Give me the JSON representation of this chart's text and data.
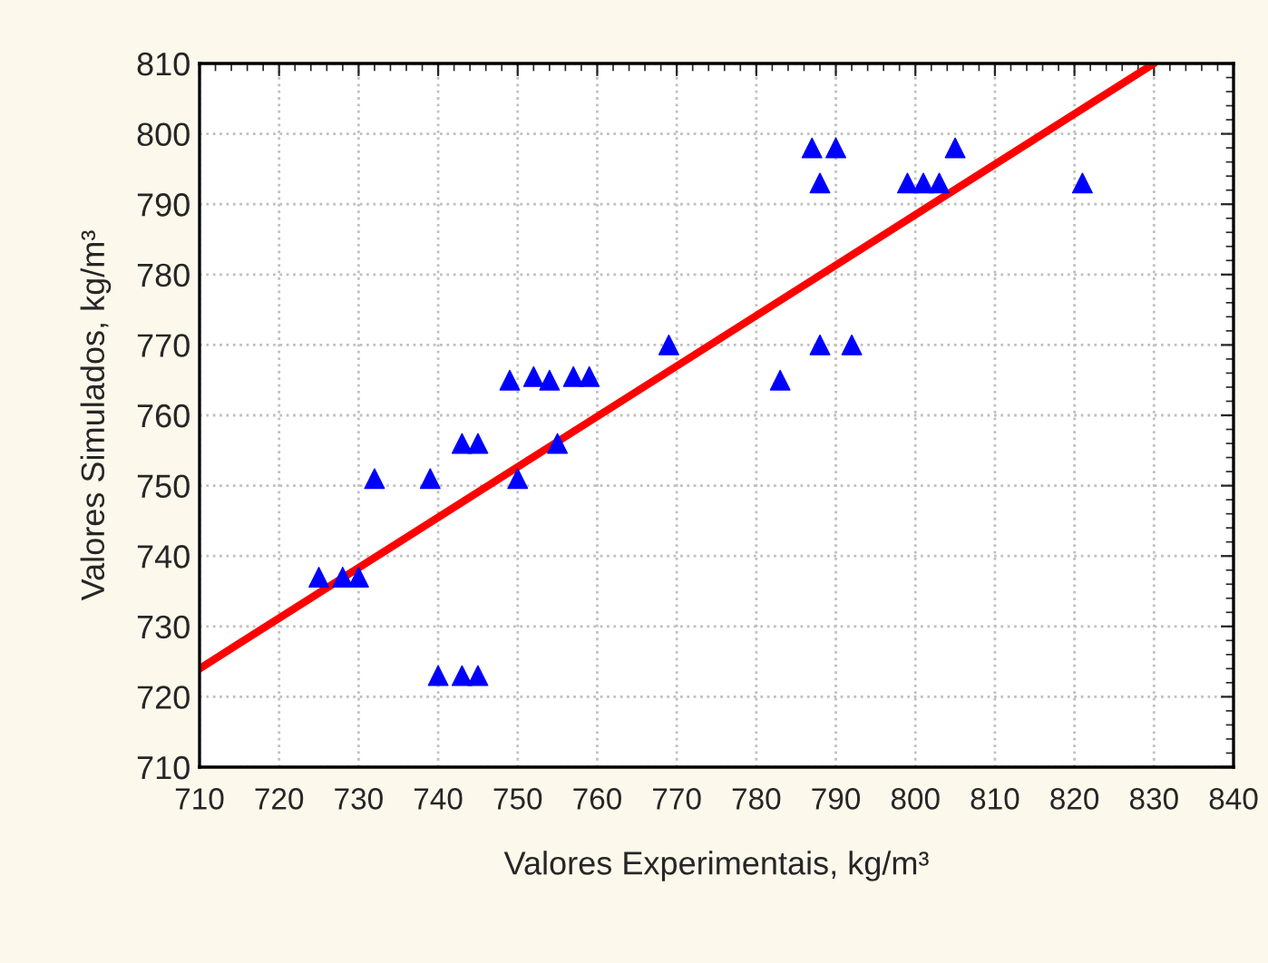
{
  "chart_data": {
    "type": "scatter",
    "xlabel": "Valores Experimentais, kg/m³",
    "ylabel": "Valores Simulados, kg/m³",
    "xlim": [
      710,
      840
    ],
    "xticks": [
      710,
      720,
      730,
      740,
      750,
      760,
      770,
      780,
      790,
      800,
      810,
      820,
      830,
      840
    ],
    "ylim": [
      710,
      810
    ],
    "yticks": [
      710,
      720,
      730,
      740,
      750,
      760,
      770,
      780,
      790,
      800,
      810
    ],
    "grid": true,
    "series": [
      {
        "color": "#0000ff",
        "marker": "triangle",
        "x": [
          725,
          728,
          730,
          732,
          739,
          740,
          743,
          745,
          743,
          745,
          749,
          752,
          754,
          750,
          755,
          757,
          759,
          769,
          787,
          790,
          788,
          799,
          801,
          803,
          805,
          821,
          788,
          792,
          783
        ],
        "values": [
          737,
          737,
          737,
          751,
          751,
          723,
          723,
          723,
          756,
          756,
          765,
          765.5,
          765,
          751,
          756,
          765.5,
          765.5,
          770,
          798,
          798,
          793,
          793,
          793,
          793,
          798,
          793,
          770,
          770,
          765
        ]
      },
      {
        "type": "line",
        "color": "#ff0000",
        "x": [
          710,
          830
        ],
        "values": [
          724,
          810
        ]
      }
    ]
  }
}
